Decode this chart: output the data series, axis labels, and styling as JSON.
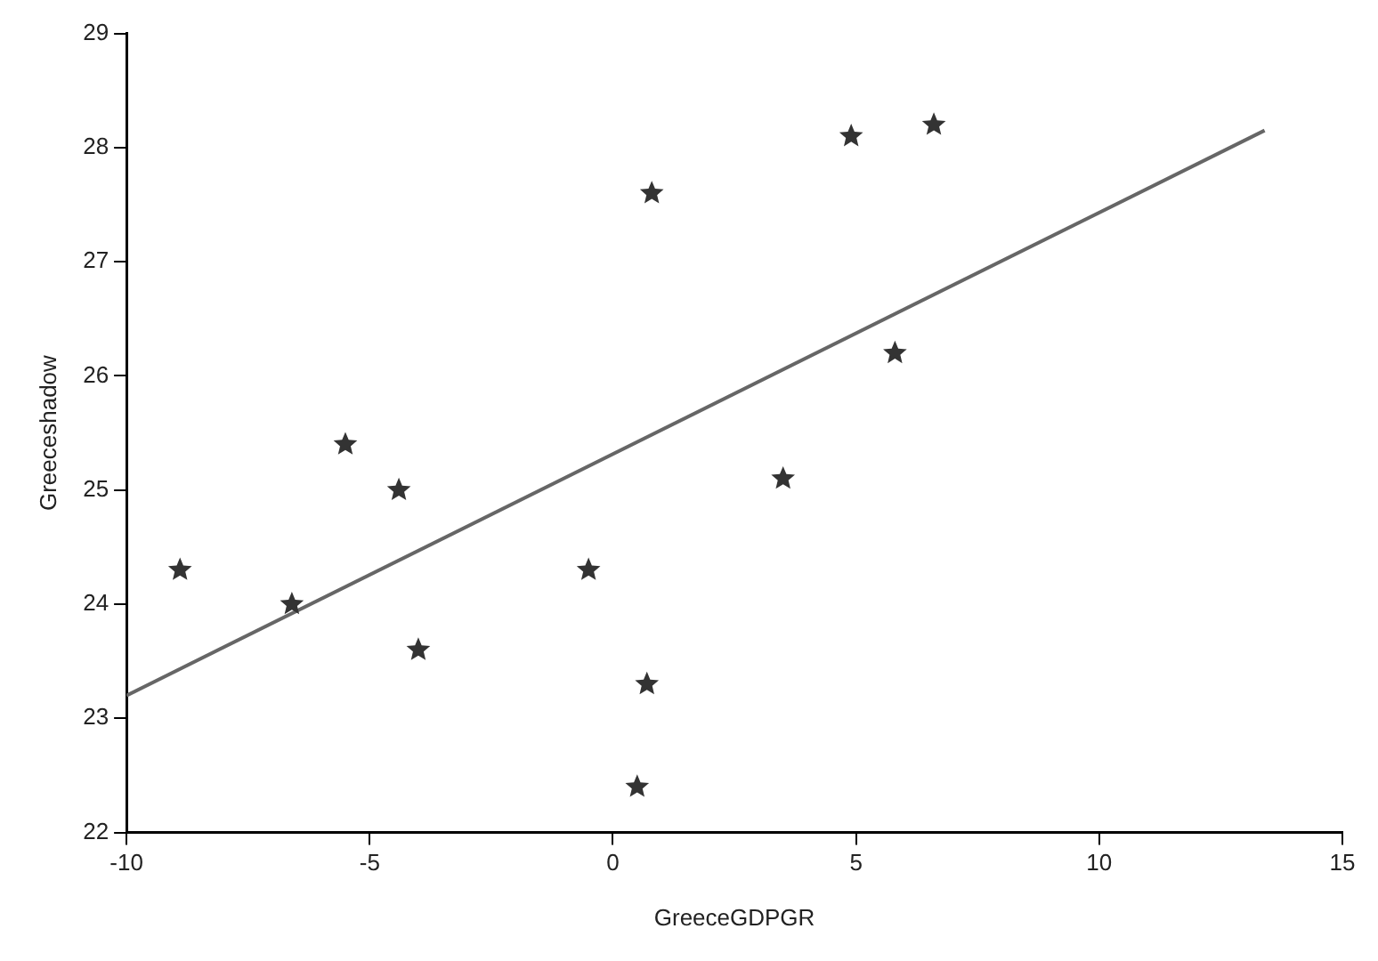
{
  "chart_data": {
    "type": "scatter",
    "xlabel": "GreeceGDPGR",
    "ylabel": "Greeceshadow",
    "xlim": [
      -10,
      15
    ],
    "xticks": [
      -10,
      -5,
      0,
      5,
      10,
      15
    ],
    "ylim": [
      22,
      29
    ],
    "yticks": [
      22,
      23,
      24,
      25,
      26,
      27,
      28,
      29
    ],
    "grid": false,
    "legend": false,
    "marker": "star",
    "series": [
      {
        "type": "scatter",
        "color": "#333333",
        "x": [
          -8.9,
          -6.6,
          -5.5,
          -4.4,
          -4.0,
          -0.5,
          0.5,
          0.7,
          0.8,
          3.5,
          4.9,
          5.8,
          6.6
        ],
        "values": [
          24.3,
          24.0,
          25.4,
          25.0,
          23.6,
          24.3,
          22.4,
          23.3,
          27.6,
          25.1,
          28.1,
          26.2,
          28.2
        ]
      },
      {
        "type": "line",
        "color": "#666666",
        "marker": "none",
        "x": [
          -10,
          13.4
        ],
        "values": [
          23.2,
          28.15
        ]
      }
    ]
  }
}
